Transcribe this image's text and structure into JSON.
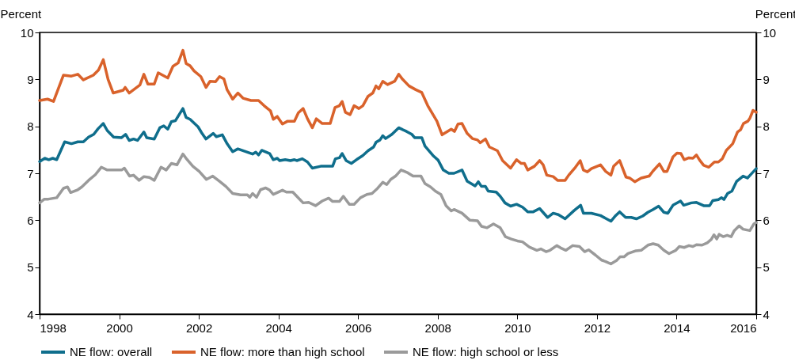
{
  "chart_data": {
    "type": "line",
    "ylabel": "Percent",
    "y2label": "Percent",
    "xlim": [
      1998,
      2016
    ],
    "xticks": [
      1998,
      2000,
      2002,
      2004,
      2006,
      2008,
      2010,
      2012,
      2014,
      2016
    ],
    "ylim": [
      4,
      10
    ],
    "yticks": [
      4,
      5,
      6,
      7,
      8,
      9,
      10
    ],
    "y2lim": [
      4,
      10
    ],
    "y2ticks": [
      4,
      5,
      6,
      7,
      8,
      9,
      10
    ],
    "grid": false,
    "legend": "bottom",
    "marker": "none",
    "line_style": "solid",
    "series": [
      {
        "name": "NE flow: overall",
        "color": "#0f6e8c",
        "x": [
          1998.0,
          1998.13,
          1998.23,
          1998.33,
          1998.43,
          1998.63,
          1998.8,
          1998.96,
          1999.1,
          1999.23,
          1999.36,
          1999.47,
          1999.6,
          1999.7,
          1999.86,
          2000.06,
          2000.16,
          2000.25,
          2000.36,
          2000.46,
          2000.62,
          2000.69,
          2000.88,
          2001.02,
          2001.12,
          2001.22,
          2001.31,
          2001.41,
          2001.6,
          2001.68,
          2001.78,
          2001.98,
          2002.08,
          2002.18,
          2002.36,
          2002.44,
          2002.59,
          2002.71,
          2002.85,
          2002.98,
          2003.18,
          2003.35,
          2003.43,
          2003.5,
          2003.58,
          2003.78,
          2003.87,
          2003.97,
          2004.03,
          2004.17,
          2004.3,
          2004.4,
          2004.46,
          2004.6,
          2004.73,
          2004.85,
          2005.06,
          2005.36,
          2005.43,
          2005.53,
          2005.6,
          2005.7,
          2005.83,
          2005.96,
          2006.12,
          2006.25,
          2006.39,
          2006.45,
          2006.55,
          2006.62,
          2006.69,
          2006.85,
          2007.02,
          2007.22,
          2007.35,
          2007.42,
          2007.6,
          2007.68,
          2007.88,
          2008.01,
          2008.14,
          2008.28,
          2008.41,
          2008.61,
          2008.74,
          2008.94,
          2009.02,
          2009.1,
          2009.2,
          2009.27,
          2009.47,
          2009.57,
          2009.69,
          2009.83,
          2009.98,
          2010.13,
          2010.26,
          2010.4,
          2010.56,
          2010.76,
          2010.9,
          2011.03,
          2011.2,
          2011.43,
          2011.59,
          2011.66,
          2011.86,
          2012.09,
          2012.22,
          2012.35,
          2012.47,
          2012.57,
          2012.72,
          2012.86,
          2012.99,
          2013.15,
          2013.28,
          2013.41,
          2013.55,
          2013.68,
          2013.78,
          2013.91,
          2014.1,
          2014.18,
          2014.37,
          2014.5,
          2014.68,
          2014.83,
          2014.91,
          2015.05,
          2015.13,
          2015.19,
          2015.28,
          2015.39,
          2015.51,
          2015.67,
          2015.78,
          2015.88,
          2016.0
        ],
        "values": [
          7.25,
          7.32,
          7.29,
          7.32,
          7.29,
          7.67,
          7.63,
          7.67,
          7.67,
          7.77,
          7.83,
          7.95,
          8.06,
          7.91,
          7.77,
          7.76,
          7.83,
          7.7,
          7.73,
          7.7,
          7.88,
          7.76,
          7.73,
          7.97,
          8.01,
          7.94,
          8.1,
          8.12,
          8.38,
          8.19,
          8.15,
          7.99,
          7.85,
          7.73,
          7.85,
          7.78,
          7.82,
          7.63,
          7.46,
          7.52,
          7.46,
          7.41,
          7.45,
          7.39,
          7.49,
          7.42,
          7.29,
          7.32,
          7.27,
          7.29,
          7.27,
          7.29,
          7.27,
          7.31,
          7.24,
          7.11,
          7.15,
          7.15,
          7.31,
          7.33,
          7.42,
          7.27,
          7.21,
          7.29,
          7.38,
          7.48,
          7.56,
          7.66,
          7.71,
          7.8,
          7.74,
          7.83,
          7.97,
          7.89,
          7.83,
          7.76,
          7.76,
          7.58,
          7.38,
          7.28,
          7.07,
          7.0,
          7.0,
          7.07,
          6.83,
          6.73,
          6.82,
          6.72,
          6.72,
          6.62,
          6.6,
          6.51,
          6.37,
          6.3,
          6.34,
          6.28,
          6.18,
          6.18,
          6.25,
          6.06,
          6.15,
          6.12,
          6.03,
          6.21,
          6.32,
          6.15,
          6.15,
          6.1,
          6.04,
          5.98,
          6.1,
          6.18,
          6.06,
          6.06,
          6.03,
          6.09,
          6.17,
          6.23,
          6.3,
          6.17,
          6.15,
          6.32,
          6.41,
          6.32,
          6.37,
          6.38,
          6.31,
          6.31,
          6.42,
          6.44,
          6.48,
          6.44,
          6.57,
          6.62,
          6.83,
          6.94,
          6.9,
          6.99,
          7.1
        ]
      },
      {
        "name": "NE flow: more than high school",
        "color": "#d9622b",
        "x": [
          1998.0,
          1998.2,
          1998.35,
          1998.6,
          1998.8,
          1998.96,
          1999.1,
          1999.35,
          1999.48,
          1999.6,
          1999.72,
          1999.85,
          2000.1,
          2000.15,
          2000.25,
          2000.52,
          2000.62,
          2000.72,
          2000.88,
          2000.98,
          2001.22,
          2001.35,
          2001.48,
          2001.6,
          2001.68,
          2001.78,
          2001.88,
          2002.05,
          2002.18,
          2002.28,
          2002.42,
          2002.52,
          2002.63,
          2002.71,
          2002.85,
          2002.98,
          2003.11,
          2003.31,
          2003.5,
          2003.64,
          2003.8,
          2003.87,
          2003.97,
          2004.1,
          2004.23,
          2004.4,
          2004.5,
          2004.62,
          2004.73,
          2004.85,
          2004.95,
          2005.1,
          2005.3,
          2005.42,
          2005.53,
          2005.6,
          2005.68,
          2005.8,
          2005.9,
          2006.02,
          2006.12,
          2006.25,
          2006.37,
          2006.45,
          2006.52,
          2006.62,
          2006.74,
          2006.92,
          2007.02,
          2007.12,
          2007.28,
          2007.45,
          2007.6,
          2007.75,
          2007.98,
          2008.11,
          2008.34,
          2008.42,
          2008.51,
          2008.61,
          2008.74,
          2008.87,
          2009.0,
          2009.07,
          2009.2,
          2009.3,
          2009.5,
          2009.63,
          2009.83,
          2009.98,
          2010.1,
          2010.18,
          2010.26,
          2010.43,
          2010.56,
          2010.65,
          2010.74,
          2010.9,
          2011.01,
          2011.2,
          2011.29,
          2011.46,
          2011.58,
          2011.66,
          2011.76,
          2011.86,
          2012.09,
          2012.22,
          2012.35,
          2012.42,
          2012.57,
          2012.73,
          2012.82,
          2012.95,
          2013.11,
          2013.31,
          2013.41,
          2013.57,
          2013.68,
          2013.76,
          2013.91,
          2014.01,
          2014.11,
          2014.19,
          2014.31,
          2014.41,
          2014.5,
          2014.58,
          2014.68,
          2014.81,
          2014.95,
          2015.05,
          2015.15,
          2015.25,
          2015.41,
          2015.53,
          2015.61,
          2015.68,
          2015.79,
          2015.84,
          2015.92,
          2016.0
        ],
        "values": [
          8.55,
          8.58,
          8.53,
          9.09,
          9.07,
          9.11,
          8.99,
          9.09,
          9.2,
          9.42,
          9.0,
          8.71,
          8.77,
          8.83,
          8.71,
          8.88,
          9.11,
          8.9,
          8.9,
          9.14,
          9.03,
          9.28,
          9.35,
          9.62,
          9.34,
          9.29,
          9.18,
          9.06,
          8.83,
          8.96,
          8.95,
          9.06,
          9.01,
          8.78,
          8.58,
          8.71,
          8.6,
          8.55,
          8.55,
          8.44,
          8.33,
          8.15,
          8.21,
          8.05,
          8.11,
          8.11,
          8.29,
          8.38,
          8.16,
          7.97,
          8.16,
          8.06,
          8.06,
          8.4,
          8.44,
          8.53,
          8.3,
          8.25,
          8.44,
          8.38,
          8.44,
          8.64,
          8.71,
          8.86,
          8.8,
          8.96,
          8.89,
          8.96,
          9.11,
          9.0,
          8.86,
          8.78,
          8.72,
          8.44,
          8.11,
          7.82,
          7.94,
          7.89,
          8.05,
          8.06,
          7.85,
          7.74,
          7.71,
          7.65,
          7.73,
          7.56,
          7.48,
          7.27,
          7.11,
          7.29,
          7.21,
          7.21,
          7.07,
          7.15,
          7.27,
          7.18,
          6.96,
          6.93,
          6.85,
          6.85,
          6.96,
          7.13,
          7.27,
          7.07,
          7.03,
          7.1,
          7.18,
          7.04,
          6.96,
          7.15,
          7.27,
          6.92,
          6.9,
          6.82,
          6.9,
          6.94,
          7.05,
          7.2,
          7.04,
          7.04,
          7.35,
          7.43,
          7.42,
          7.29,
          7.33,
          7.32,
          7.39,
          7.28,
          7.17,
          7.13,
          7.24,
          7.24,
          7.31,
          7.49,
          7.63,
          7.88,
          7.93,
          8.06,
          8.11,
          8.17,
          8.34,
          8.3
        ]
      },
      {
        "name": "NE flow: high school or less",
        "color": "#9a9a9a",
        "x": [
          1998.0,
          1998.12,
          1998.22,
          1998.43,
          1998.6,
          1998.7,
          1998.78,
          1998.96,
          1999.06,
          1999.23,
          1999.4,
          1999.55,
          1999.7,
          2000.06,
          2000.13,
          2000.26,
          2000.36,
          2000.5,
          2000.62,
          2000.76,
          2000.88,
          2001.05,
          2001.18,
          2001.31,
          2001.45,
          2001.6,
          2001.68,
          2001.85,
          2002.01,
          2002.19,
          2002.35,
          2002.52,
          2002.68,
          2002.85,
          2003.05,
          2003.22,
          2003.28,
          2003.35,
          2003.45,
          2003.55,
          2003.68,
          2003.78,
          2003.87,
          2003.97,
          2004.1,
          2004.2,
          2004.36,
          2004.46,
          2004.62,
          2004.76,
          2004.93,
          2005.1,
          2005.26,
          2005.36,
          2005.53,
          2005.63,
          2005.78,
          2005.9,
          2006.06,
          2006.22,
          2006.35,
          2006.49,
          2006.62,
          2006.72,
          2006.82,
          2006.94,
          2007.08,
          2007.25,
          2007.38,
          2007.58,
          2007.68,
          2007.82,
          2007.94,
          2008.08,
          2008.21,
          2008.34,
          2008.41,
          2008.61,
          2008.81,
          2009.0,
          2009.1,
          2009.24,
          2009.4,
          2009.57,
          2009.7,
          2009.85,
          2010.0,
          2010.13,
          2010.3,
          2010.49,
          2010.59,
          2010.72,
          2010.82,
          2010.99,
          2011.09,
          2011.22,
          2011.39,
          2011.56,
          2011.69,
          2011.79,
          2011.96,
          2012.12,
          2012.22,
          2012.35,
          2012.49,
          2012.58,
          2012.68,
          2012.78,
          2012.98,
          2013.11,
          2013.28,
          2013.41,
          2013.54,
          2013.68,
          2013.81,
          2013.98,
          2014.07,
          2014.19,
          2014.31,
          2014.41,
          2014.5,
          2014.64,
          2014.77,
          2014.87,
          2014.94,
          2015.01,
          2015.07,
          2015.17,
          2015.27,
          2015.37,
          2015.45,
          2015.57,
          2015.67,
          2015.84,
          2015.94,
          2016.0
        ],
        "values": [
          6.37,
          6.45,
          6.45,
          6.48,
          6.68,
          6.71,
          6.59,
          6.65,
          6.71,
          6.85,
          6.97,
          7.13,
          7.07,
          7.07,
          7.11,
          6.94,
          6.96,
          6.85,
          6.93,
          6.91,
          6.85,
          7.13,
          7.07,
          7.21,
          7.18,
          7.41,
          7.32,
          7.15,
          7.04,
          6.87,
          6.94,
          6.83,
          6.72,
          6.57,
          6.54,
          6.54,
          6.49,
          6.57,
          6.49,
          6.65,
          6.69,
          6.64,
          6.55,
          6.59,
          6.64,
          6.6,
          6.6,
          6.51,
          6.37,
          6.38,
          6.31,
          6.41,
          6.47,
          6.4,
          6.4,
          6.51,
          6.34,
          6.34,
          6.48,
          6.55,
          6.57,
          6.68,
          6.81,
          6.76,
          6.87,
          6.94,
          7.07,
          7.01,
          6.94,
          6.94,
          6.78,
          6.71,
          6.62,
          6.55,
          6.31,
          6.2,
          6.23,
          6.15,
          6.0,
          5.99,
          5.87,
          5.84,
          5.92,
          5.84,
          5.65,
          5.6,
          5.56,
          5.54,
          5.43,
          5.36,
          5.39,
          5.33,
          5.36,
          5.46,
          5.41,
          5.36,
          5.46,
          5.44,
          5.33,
          5.37,
          5.26,
          5.15,
          5.12,
          5.07,
          5.14,
          5.22,
          5.22,
          5.29,
          5.35,
          5.36,
          5.47,
          5.5,
          5.47,
          5.36,
          5.29,
          5.36,
          5.44,
          5.42,
          5.46,
          5.44,
          5.48,
          5.47,
          5.52,
          5.59,
          5.69,
          5.6,
          5.7,
          5.65,
          5.68,
          5.65,
          5.78,
          5.88,
          5.81,
          5.78,
          5.92,
          5.95
        ]
      }
    ]
  }
}
